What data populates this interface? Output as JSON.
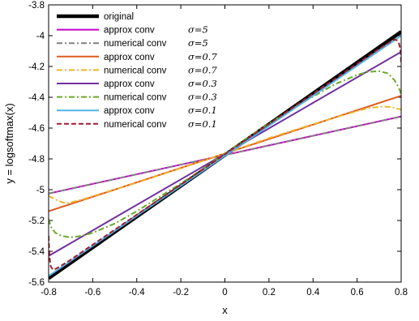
{
  "chart_data": {
    "type": "line",
    "xlabel": "x",
    "ylabel": "y = logsoftmax(x)",
    "xlim": [
      -0.8,
      0.8
    ],
    "ylim": [
      -5.6,
      -3.8
    ],
    "xticks": [
      "-0.8",
      "-0.6",
      "-0.4",
      "-0.2",
      "0",
      "0.2",
      "0.4",
      "0.6",
      "0.8"
    ],
    "yticks": [
      "-5.6",
      "-5.4",
      "-5.2",
      "-5",
      "-4.8",
      "-4.6",
      "-4.4",
      "-4.2",
      "-4",
      "-3.8"
    ],
    "grid": false,
    "legend_position": "top-left",
    "series": [
      {
        "name": "original",
        "sigma": "",
        "color": "#000000",
        "dash": "solid",
        "x": [
          -0.8,
          0.8
        ],
        "y": [
          -5.575,
          -3.975
        ]
      },
      {
        "name": "approx conv",
        "sigma": "σ=5",
        "color": "#c800c8",
        "dash": "solid",
        "x": [
          -0.8,
          0.8
        ],
        "y": [
          -5.025,
          -4.525
        ]
      },
      {
        "name": "numerical conv",
        "sigma": "σ=5",
        "color": "#808080",
        "dash": "dashdot",
        "x": [
          -0.8,
          0.8
        ],
        "y": [
          -5.025,
          -4.525
        ]
      },
      {
        "name": "approx conv",
        "sigma": "σ=0.7",
        "color": "#e05a1e",
        "dash": "solid",
        "x": [
          -0.8,
          0.8
        ],
        "y": [
          -5.14,
          -4.39
        ]
      },
      {
        "name": "numerical conv",
        "sigma": "σ=0.7",
        "color": "#f0b428",
        "dash": "dashdot",
        "x": [
          -0.8,
          -0.76,
          -0.72,
          -0.65,
          -0.55,
          -0.4,
          -0.2,
          0,
          0.2,
          0.4,
          0.55,
          0.65,
          0.72,
          0.76,
          0.8
        ],
        "y": [
          -5.04,
          -5.07,
          -5.09,
          -5.065,
          -5.02,
          -4.955,
          -4.86,
          -4.765,
          -4.665,
          -4.575,
          -4.51,
          -4.47,
          -4.46,
          -4.465,
          -4.48
        ]
      },
      {
        "name": "approx conv",
        "sigma": "σ=0.3",
        "color": "#7030a0",
        "dash": "solid",
        "x": [
          -0.8,
          0.8
        ],
        "y": [
          -5.43,
          -4.105
        ]
      },
      {
        "name": "numerical conv",
        "sigma": "σ=0.3",
        "color": "#6aaa28",
        "dash": "dashdot",
        "x": [
          -0.8,
          -0.79,
          -0.77,
          -0.74,
          -0.7,
          -0.65,
          -0.6,
          -0.5,
          -0.4,
          -0.3,
          -0.2,
          -0.1,
          0,
          0.1,
          0.2,
          0.3,
          0.4,
          0.5,
          0.6,
          0.65,
          0.7,
          0.74,
          0.77,
          0.79,
          0.8
        ],
        "y": [
          -5.19,
          -5.24,
          -5.28,
          -5.3,
          -5.31,
          -5.3,
          -5.28,
          -5.22,
          -5.14,
          -5.05,
          -4.96,
          -4.865,
          -4.765,
          -4.665,
          -4.57,
          -4.48,
          -4.395,
          -4.315,
          -4.255,
          -4.235,
          -4.23,
          -4.245,
          -4.29,
          -4.34,
          -4.38
        ]
      },
      {
        "name": "approx conv",
        "sigma": "σ=0.1",
        "color": "#50b4e6",
        "dash": "solid",
        "x": [
          -0.8,
          0.8
        ],
        "y": [
          -5.56,
          -4.0
        ]
      },
      {
        "name": "numerical conv",
        "sigma": "σ=0.1",
        "color": "#a01e32",
        "dash": "dashed",
        "x": [
          -0.8,
          -0.798,
          -0.795,
          -0.79,
          -0.78,
          -0.77,
          -0.75,
          -0.7,
          -0.5,
          -0.3,
          0,
          0.3,
          0.5,
          0.7,
          0.75,
          0.77,
          0.78,
          0.79,
          0.795,
          0.798,
          0.8
        ],
        "y": [
          -5.3,
          -5.38,
          -5.45,
          -5.5,
          -5.52,
          -5.515,
          -5.5,
          -5.455,
          -5.26,
          -5.065,
          -4.77,
          -4.475,
          -4.28,
          -4.085,
          -4.04,
          -4.025,
          -4.03,
          -4.05,
          -4.08,
          -4.12,
          -4.18
        ]
      }
    ]
  }
}
